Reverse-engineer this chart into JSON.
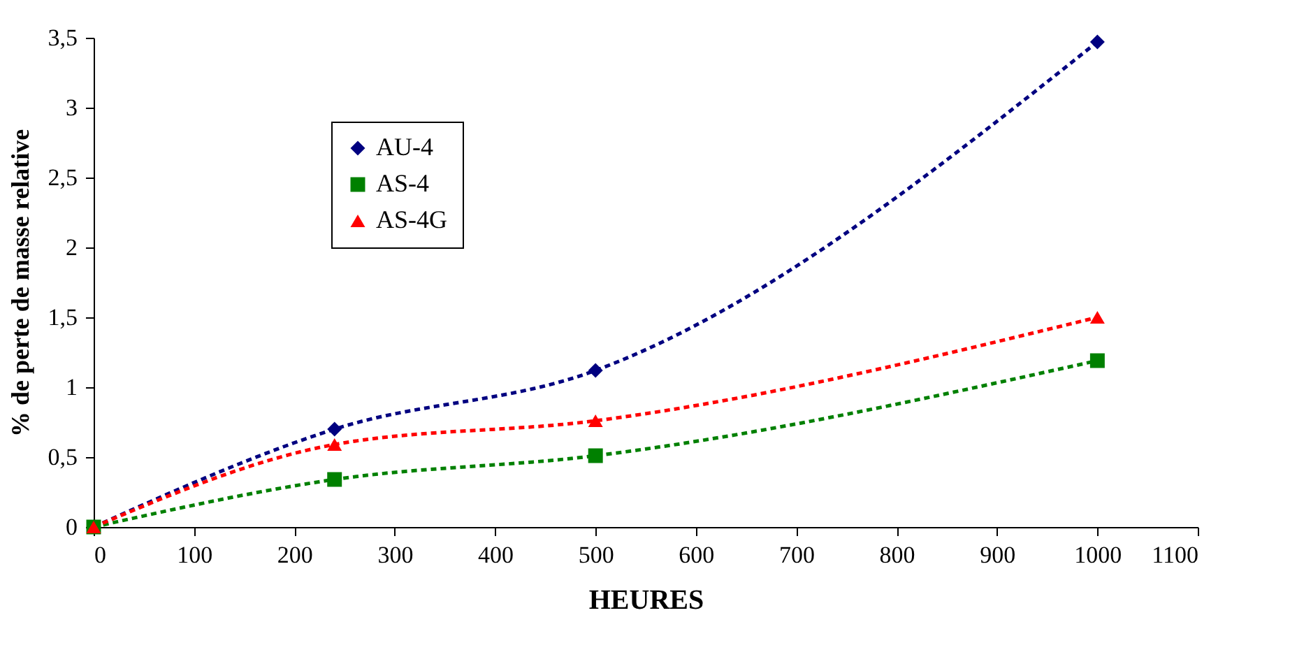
{
  "chart_data": {
    "type": "line",
    "xlabel": "HEURES",
    "ylabel": "% de perte de masse relative",
    "xlim": [
      0,
      1100
    ],
    "xticks": [
      0,
      100,
      200,
      300,
      400,
      500,
      600,
      700,
      800,
      900,
      1000,
      1100
    ],
    "ylim": [
      0,
      3.5
    ],
    "yticks": [
      0,
      {
        "value": 0.5,
        "label": "0,5"
      },
      1,
      {
        "value": 1.5,
        "label": "1,5"
      },
      2,
      {
        "value": 2.5,
        "label": "2,5"
      },
      3,
      {
        "value": 3.5,
        "label": "3,5"
      }
    ],
    "grid": false,
    "legend": "top left",
    "line_style": "dashed",
    "x": [
      0,
      240,
      500,
      1000
    ],
    "series": [
      {
        "name": "AU-4",
        "color": "#000080",
        "marker": "diamond",
        "values": [
          0,
          0.7,
          1.12,
          3.47
        ]
      },
      {
        "name": "AS-4",
        "color": "#008000",
        "marker": "square",
        "values": [
          0,
          0.34,
          0.51,
          1.19
        ]
      },
      {
        "name": "AS-4G",
        "color": "#ff0000",
        "marker": "triangle",
        "values": [
          0,
          0.59,
          0.76,
          1.5
        ]
      }
    ]
  }
}
